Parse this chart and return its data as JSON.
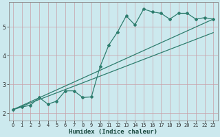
{
  "xlabel": "Humidex (Indice chaleur)",
  "background_color": "#cce9ee",
  "grid_color": "#b8d8dd",
  "line_color": "#2e7d6e",
  "xlim": [
    -0.5,
    23.5
  ],
  "ylim": [
    1.75,
    5.85
  ],
  "xticks": [
    0,
    1,
    2,
    3,
    4,
    5,
    6,
    7,
    8,
    9,
    10,
    11,
    12,
    13,
    14,
    15,
    16,
    17,
    18,
    19,
    20,
    21,
    22,
    23
  ],
  "yticks": [
    2,
    3,
    4,
    5
  ],
  "data_x": [
    0,
    1,
    2,
    3,
    4,
    5,
    6,
    7,
    8,
    9,
    10,
    11,
    12,
    13,
    14,
    15,
    16,
    17,
    18,
    19,
    20,
    21,
    22,
    23
  ],
  "data_y": [
    2.13,
    2.22,
    2.28,
    2.55,
    2.32,
    2.42,
    2.78,
    2.78,
    2.55,
    2.57,
    3.62,
    4.37,
    4.82,
    5.38,
    5.07,
    5.62,
    5.52,
    5.47,
    5.27,
    5.47,
    5.47,
    5.27,
    5.32,
    5.27
  ],
  "line1_x": [
    0,
    23
  ],
  "line1_y": [
    2.13,
    4.8
  ],
  "line2_x": [
    0,
    23
  ],
  "line2_y": [
    2.13,
    5.27
  ]
}
